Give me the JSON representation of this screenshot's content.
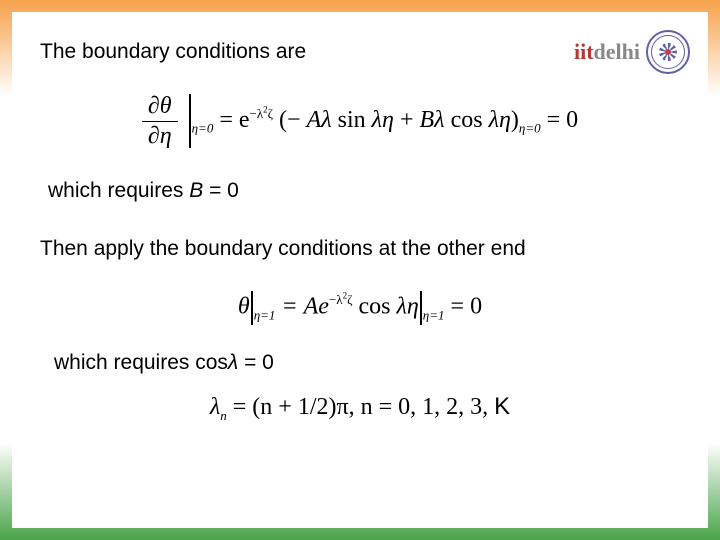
{
  "logo": {
    "text_iit": "iit",
    "text_delhi": "delhi"
  },
  "text": {
    "line1": "The boundary conditions are",
    "line2_pre": "which requires ",
    "line2_var": "B",
    "line2_post": " = 0",
    "line3": "Then apply the boundary conditions at the other end",
    "line4_pre": "which requires cos",
    "line4_var": "λ",
    "line4_post": " = 0"
  },
  "equations": {
    "eq1": {
      "frac_num": "∂θ",
      "frac_den": "∂η",
      "sub_lhs": "η=0",
      "mid": " = e",
      "exp1": "−λ",
      "exp1b": "ζ",
      "paren_open": "(− ",
      "Aterm": "Aλ",
      "sin": " sin ",
      "sin_arg": "λη",
      "plus": " + ",
      "Bterm": "Bλ",
      "cos": " cos ",
      "cos_arg": "λη",
      "paren_close": ")",
      "sub_rhs": "η=0",
      "tail": " = 0"
    },
    "eq2": {
      "theta": "θ",
      "sub_lhs": "η=1",
      "eqA": " = Ae",
      "exp": "−λ",
      "expb": "ζ",
      "cos": " cos ",
      "cos_arg": "λη",
      "sub_rhs": "η=1",
      "tail": " = 0"
    },
    "eq3": {
      "lhs": "λ",
      "sub_n": "n",
      "mid": " = (n + 1/2)π, n = 0, 1, 2, 3, ",
      "tail": "K"
    }
  },
  "style": {
    "body_font_size": 21,
    "eq_font_size": 24,
    "text_color": "#000000",
    "bg_gradient_top": "#f5a14a",
    "bg_gradient_bottom": "#4aa34a",
    "slide_bg": "#ffffff",
    "logo_iit_color": "#b83535",
    "logo_delhi_color": "#888888"
  }
}
